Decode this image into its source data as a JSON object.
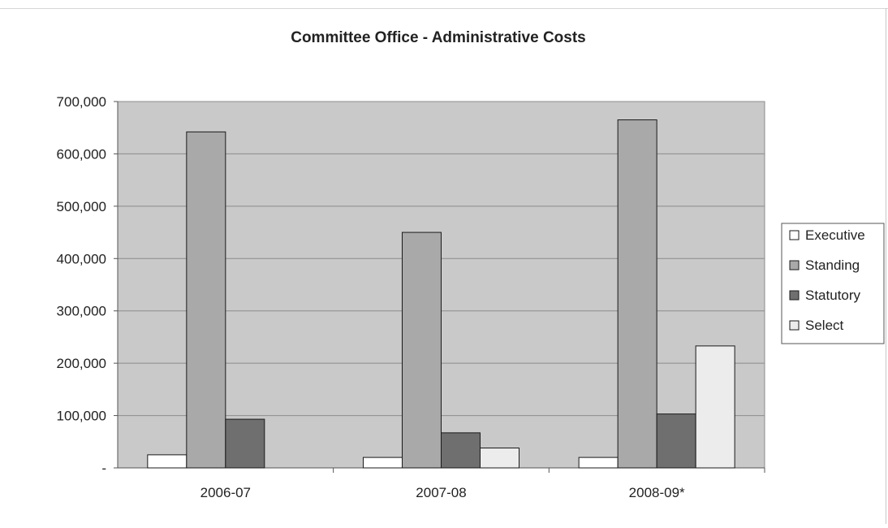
{
  "chart_data": {
    "type": "bar",
    "title": "Committee Office - Administrative Costs",
    "xlabel": "",
    "ylabel": "",
    "categories": [
      "2006-07",
      "2007-08",
      "2008-09*"
    ],
    "series": [
      {
        "name": "Executive",
        "values": [
          25000,
          20000,
          20000
        ]
      },
      {
        "name": "Standing",
        "values": [
          642000,
          450000,
          665000
        ]
      },
      {
        "name": "Statutory",
        "values": [
          93000,
          67000,
          103000
        ]
      },
      {
        "name": "Select",
        "values": [
          0,
          38000,
          233000
        ]
      }
    ],
    "ylim": [
      0,
      700000
    ],
    "yticks": [
      {
        "value": 0,
        "label": "-"
      },
      {
        "value": 100000,
        "label": "100,000"
      },
      {
        "value": 200000,
        "label": "200,000"
      },
      {
        "value": 300000,
        "label": "300,000"
      },
      {
        "value": 400000,
        "label": "400,000"
      },
      {
        "value": 500000,
        "label": "500,000"
      },
      {
        "value": 600000,
        "label": "600,000"
      },
      {
        "value": 700000,
        "label": "700,000"
      }
    ],
    "grid": true,
    "legend_position": "right",
    "colors": {
      "plot_background": "#c9c9c9",
      "gridline": "#8c8c8c",
      "Executive": "#ffffff",
      "Standing": "#a9a9a9",
      "Statutory": "#6f6f6f",
      "Select": "#ececec"
    }
  }
}
